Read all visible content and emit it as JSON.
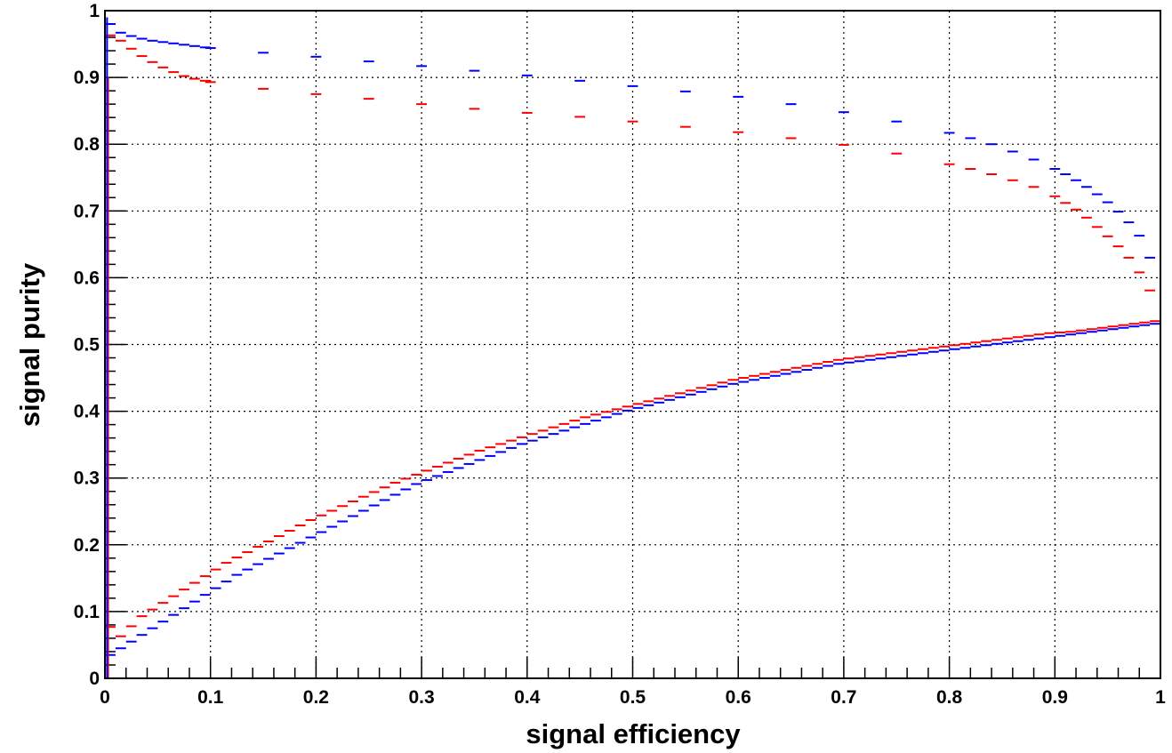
{
  "chart_data": {
    "type": "scatter",
    "title": "",
    "xlabel": "signal efficiency",
    "ylabel": "signal purity",
    "xlim": [
      0,
      1
    ],
    "ylim": [
      0,
      1
    ],
    "grid": true,
    "x_ticks": [
      "0",
      "0.1",
      "0.2",
      "0.3",
      "0.4",
      "0.5",
      "0.6",
      "0.7",
      "0.8",
      "0.9",
      "1"
    ],
    "y_ticks": [
      "0",
      "0.1",
      "0.2",
      "0.3",
      "0.4",
      "0.5",
      "0.6",
      "0.7",
      "0.8",
      "0.9",
      "1"
    ],
    "bin_width": 0.01,
    "series": [
      {
        "color": "#0000ff",
        "curve": "upper",
        "x": [
          0.005,
          0.015,
          0.025,
          0.035,
          0.045,
          0.055,
          0.065,
          0.075,
          0.085,
          0.095,
          0.1,
          0.15,
          0.2,
          0.25,
          0.3,
          0.35,
          0.4,
          0.45,
          0.5,
          0.55,
          0.6,
          0.65,
          0.7,
          0.75,
          0.8,
          0.82,
          0.84,
          0.86,
          0.88,
          0.9,
          0.91,
          0.92,
          0.93,
          0.94,
          0.95,
          0.96,
          0.97,
          0.98,
          0.99
        ],
        "y": [
          0.98,
          0.967,
          0.962,
          0.958,
          0.955,
          0.953,
          0.951,
          0.949,
          0.947,
          0.945,
          0.944,
          0.937,
          0.931,
          0.924,
          0.917,
          0.91,
          0.903,
          0.895,
          0.887,
          0.879,
          0.871,
          0.86,
          0.848,
          0.834,
          0.817,
          0.809,
          0.8,
          0.789,
          0.777,
          0.763,
          0.755,
          0.746,
          0.736,
          0.725,
          0.713,
          0.699,
          0.683,
          0.663,
          0.63
        ]
      },
      {
        "color": "#ff0000",
        "curve": "upper",
        "x": [
          0.005,
          0.015,
          0.025,
          0.035,
          0.045,
          0.055,
          0.065,
          0.075,
          0.085,
          0.095,
          0.1,
          0.15,
          0.2,
          0.25,
          0.3,
          0.35,
          0.4,
          0.45,
          0.5,
          0.55,
          0.6,
          0.65,
          0.7,
          0.75,
          0.8,
          0.82,
          0.84,
          0.86,
          0.88,
          0.9,
          0.91,
          0.92,
          0.93,
          0.94,
          0.95,
          0.96,
          0.97,
          0.98,
          0.99
        ],
        "y": [
          0.963,
          0.955,
          0.943,
          0.932,
          0.923,
          0.915,
          0.908,
          0.902,
          0.898,
          0.895,
          0.893,
          0.883,
          0.875,
          0.868,
          0.86,
          0.853,
          0.847,
          0.841,
          0.834,
          0.826,
          0.818,
          0.809,
          0.799,
          0.786,
          0.77,
          0.763,
          0.755,
          0.746,
          0.736,
          0.722,
          0.712,
          0.702,
          0.69,
          0.676,
          0.662,
          0.647,
          0.63,
          0.608,
          0.581
        ]
      },
      {
        "color": "#0000ff",
        "curve": "lower",
        "x": [
          0.005,
          0.015,
          0.025,
          0.035,
          0.045,
          0.055,
          0.065,
          0.075,
          0.085,
          0.095,
          0.105,
          0.115,
          0.125,
          0.135,
          0.145,
          0.155,
          0.165,
          0.175,
          0.185,
          0.195,
          0.205,
          0.215,
          0.225,
          0.235,
          0.245,
          0.255,
          0.265,
          0.275,
          0.285,
          0.295,
          0.305,
          0.315,
          0.325,
          0.335,
          0.345,
          0.355,
          0.365,
          0.375,
          0.385,
          0.395,
          0.405,
          0.415,
          0.425,
          0.435,
          0.445,
          0.455,
          0.465,
          0.475,
          0.485,
          0.495,
          0.505,
          0.515,
          0.525,
          0.535,
          0.545,
          0.555,
          0.565,
          0.575,
          0.585,
          0.595,
          0.605,
          0.615,
          0.625,
          0.635,
          0.645,
          0.655,
          0.665,
          0.675,
          0.685,
          0.695,
          0.705,
          0.715,
          0.725,
          0.735,
          0.745,
          0.755,
          0.765,
          0.775,
          0.785,
          0.795,
          0.805,
          0.815,
          0.825,
          0.835,
          0.845,
          0.855,
          0.865,
          0.875,
          0.885,
          0.895,
          0.905,
          0.915,
          0.925,
          0.935,
          0.945,
          0.955,
          0.965,
          0.975,
          0.985,
          0.995
        ],
        "y": [
          0.035,
          0.045,
          0.055,
          0.065,
          0.075,
          0.085,
          0.095,
          0.105,
          0.115,
          0.125,
          0.135,
          0.145,
          0.155,
          0.163,
          0.171,
          0.179,
          0.187,
          0.195,
          0.203,
          0.211,
          0.219,
          0.227,
          0.235,
          0.243,
          0.251,
          0.259,
          0.267,
          0.275,
          0.283,
          0.291,
          0.297,
          0.303,
          0.309,
          0.315,
          0.321,
          0.327,
          0.333,
          0.339,
          0.345,
          0.351,
          0.356,
          0.361,
          0.366,
          0.371,
          0.376,
          0.381,
          0.386,
          0.391,
          0.396,
          0.401,
          0.405,
          0.409,
          0.413,
          0.417,
          0.421,
          0.425,
          0.429,
          0.433,
          0.437,
          0.441,
          0.444,
          0.447,
          0.45,
          0.453,
          0.456,
          0.459,
          0.462,
          0.465,
          0.468,
          0.471,
          0.473,
          0.475,
          0.477,
          0.479,
          0.481,
          0.483,
          0.485,
          0.487,
          0.489,
          0.491,
          0.493,
          0.495,
          0.497,
          0.499,
          0.501,
          0.503,
          0.505,
          0.507,
          0.509,
          0.511,
          0.513,
          0.515,
          0.517,
          0.519,
          0.521,
          0.523,
          0.525,
          0.527,
          0.529,
          0.531
        ]
      },
      {
        "color": "#ff0000",
        "curve": "lower",
        "x": [
          0.005,
          0.015,
          0.025,
          0.035,
          0.045,
          0.055,
          0.065,
          0.075,
          0.085,
          0.095,
          0.105,
          0.115,
          0.125,
          0.135,
          0.145,
          0.155,
          0.165,
          0.175,
          0.185,
          0.195,
          0.205,
          0.215,
          0.225,
          0.235,
          0.245,
          0.255,
          0.265,
          0.275,
          0.285,
          0.295,
          0.305,
          0.315,
          0.325,
          0.335,
          0.345,
          0.355,
          0.365,
          0.375,
          0.385,
          0.395,
          0.405,
          0.415,
          0.425,
          0.435,
          0.445,
          0.455,
          0.465,
          0.475,
          0.485,
          0.495,
          0.505,
          0.515,
          0.525,
          0.535,
          0.545,
          0.555,
          0.565,
          0.575,
          0.585,
          0.595,
          0.605,
          0.615,
          0.625,
          0.635,
          0.645,
          0.655,
          0.665,
          0.675,
          0.685,
          0.695,
          0.705,
          0.715,
          0.725,
          0.735,
          0.745,
          0.755,
          0.765,
          0.775,
          0.785,
          0.795,
          0.805,
          0.815,
          0.825,
          0.835,
          0.845,
          0.855,
          0.865,
          0.875,
          0.885,
          0.895,
          0.905,
          0.915,
          0.925,
          0.935,
          0.945,
          0.955,
          0.965,
          0.975,
          0.985,
          0.995
        ],
        "y": [
          0.077,
          0.063,
          0.078,
          0.093,
          0.103,
          0.113,
          0.123,
          0.133,
          0.143,
          0.153,
          0.163,
          0.173,
          0.181,
          0.189,
          0.197,
          0.205,
          0.213,
          0.221,
          0.229,
          0.237,
          0.244,
          0.251,
          0.258,
          0.265,
          0.272,
          0.279,
          0.286,
          0.293,
          0.299,
          0.305,
          0.311,
          0.317,
          0.323,
          0.329,
          0.335,
          0.341,
          0.346,
          0.351,
          0.356,
          0.361,
          0.366,
          0.371,
          0.376,
          0.381,
          0.386,
          0.391,
          0.395,
          0.399,
          0.403,
          0.407,
          0.411,
          0.415,
          0.419,
          0.423,
          0.427,
          0.431,
          0.435,
          0.439,
          0.443,
          0.447,
          0.45,
          0.453,
          0.456,
          0.459,
          0.462,
          0.465,
          0.468,
          0.471,
          0.474,
          0.477,
          0.479,
          0.481,
          0.483,
          0.485,
          0.487,
          0.489,
          0.491,
          0.493,
          0.495,
          0.497,
          0.499,
          0.501,
          0.503,
          0.505,
          0.507,
          0.509,
          0.511,
          0.513,
          0.515,
          0.517,
          0.518,
          0.519,
          0.521,
          0.523,
          0.525,
          0.527,
          0.529,
          0.531,
          0.533,
          0.535
        ]
      }
    ],
    "steep_edge": {
      "color": "#ff0000",
      "x": 0.003,
      "y": [
        0.0,
        0.13,
        0.4,
        0.55,
        0.7,
        0.81,
        0.9
      ]
    },
    "steep_edge_blue": {
      "color": "#0000ff",
      "x": 0.002,
      "y": [
        0.0,
        0.54,
        0.99
      ]
    }
  }
}
